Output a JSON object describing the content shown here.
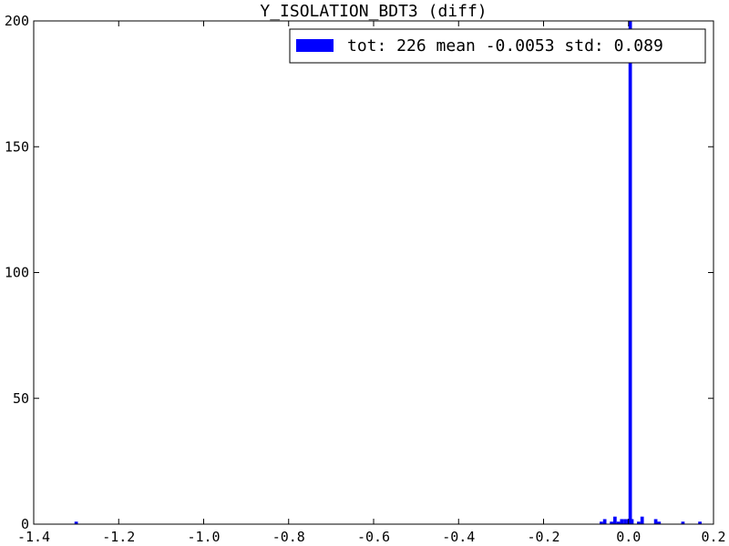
{
  "chart_data": {
    "type": "bar",
    "title": "Y_ISOLATION_BDT3 (diff)",
    "xlabel": "",
    "ylabel": "",
    "xlim": [
      -1.4,
      0.2
    ],
    "ylim": [
      0,
      200
    ],
    "x_ticks": [
      "-1.4",
      "-1.2",
      "-1.0",
      "-0.8",
      "-0.6",
      "-0.4",
      "-0.2",
      "0.0",
      "0.2"
    ],
    "y_ticks": [
      "0",
      "50",
      "100",
      "150",
      "200"
    ],
    "grid": false,
    "legend_position": "top-right",
    "bin_width": 0.008,
    "bins": [
      {
        "x": -1.304,
        "count": 1
      },
      {
        "x": -0.068,
        "count": 1
      },
      {
        "x": -0.06,
        "count": 2
      },
      {
        "x": -0.044,
        "count": 1
      },
      {
        "x": -0.036,
        "count": 3
      },
      {
        "x": -0.028,
        "count": 1
      },
      {
        "x": -0.02,
        "count": 2
      },
      {
        "x": -0.012,
        "count": 2
      },
      {
        "x": -0.004,
        "count": 2
      },
      {
        "x": 0.0,
        "count": 200
      },
      {
        "x": 0.004,
        "count": 2
      },
      {
        "x": 0.02,
        "count": 1
      },
      {
        "x": 0.028,
        "count": 3
      },
      {
        "x": 0.06,
        "count": 2
      },
      {
        "x": 0.068,
        "count": 1
      },
      {
        "x": 0.124,
        "count": 1
      },
      {
        "x": 0.164,
        "count": 1
      }
    ],
    "series": [
      {
        "name": "tot: 226 mean -0.0053 std: 0.089",
        "color": "#0000ff"
      }
    ]
  }
}
